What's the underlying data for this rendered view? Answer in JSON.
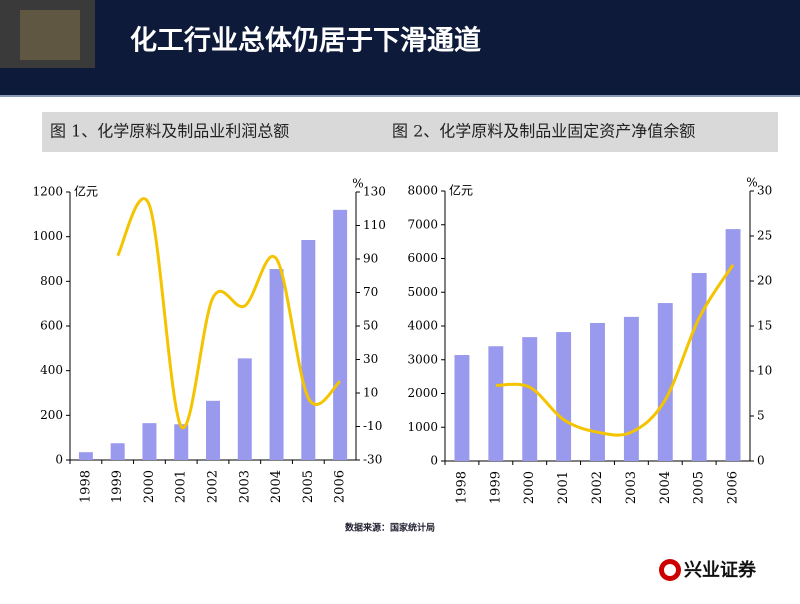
{
  "header": {
    "title": "化工行业总体仍居于下滑通道"
  },
  "figure_titles": [
    "图 1、化学原料及制品业利润总额",
    "图  2、化学原料及制品业固定资产净值余额"
  ],
  "chart_data": [
    {
      "type": "bar-line",
      "y_label": "亿元",
      "y2_label": "%",
      "categories": [
        "1998",
        "1999",
        "2000",
        "2001",
        "2002",
        "2003",
        "2004",
        "2005",
        "2006"
      ],
      "series": [
        {
          "color": "#9999ee",
          "type": "bar",
          "values": [
            35,
            75,
            165,
            160,
            265,
            455,
            855,
            985,
            1120
          ]
        },
        {
          "color": "#f5c400",
          "type": "line",
          "axis": "y2",
          "values": [
            null,
            92,
            122,
            -10,
            67,
            62,
            90,
            7,
            17
          ]
        }
      ],
      "ylim": [
        0,
        1200
      ],
      "yticks": [
        0,
        200,
        400,
        600,
        800,
        1000,
        1200
      ],
      "y2lim": [
        -30,
        130
      ],
      "y2ticks": [
        -30,
        -10,
        10,
        30,
        50,
        70,
        90,
        110,
        130
      ]
    },
    {
      "type": "bar-line",
      "y_label": "亿元",
      "y2_label": "%",
      "categories": [
        "1998",
        "1999",
        "2000",
        "2001",
        "2002",
        "2003",
        "2004",
        "2005",
        "2006"
      ],
      "series": [
        {
          "color": "#9999ee",
          "type": "bar",
          "values": [
            3140,
            3400,
            3670,
            3820,
            4090,
            4270,
            4680,
            5570,
            6870
          ]
        },
        {
          "color": "#f5c400",
          "type": "line",
          "axis": "y2",
          "values": [
            null,
            8.4,
            8.2,
            4.6,
            3.2,
            3.2,
            6.8,
            15.9,
            21.8
          ]
        }
      ],
      "ylim": [
        0,
        8000
      ],
      "yticks": [
        0,
        1000,
        2000,
        3000,
        4000,
        5000,
        6000,
        7000,
        8000
      ],
      "y2lim": [
        0,
        30
      ],
      "y2ticks": [
        0,
        5,
        10,
        15,
        20,
        25,
        30
      ]
    }
  ],
  "source": "数据来源：国家统计局",
  "logo": "兴业证券"
}
